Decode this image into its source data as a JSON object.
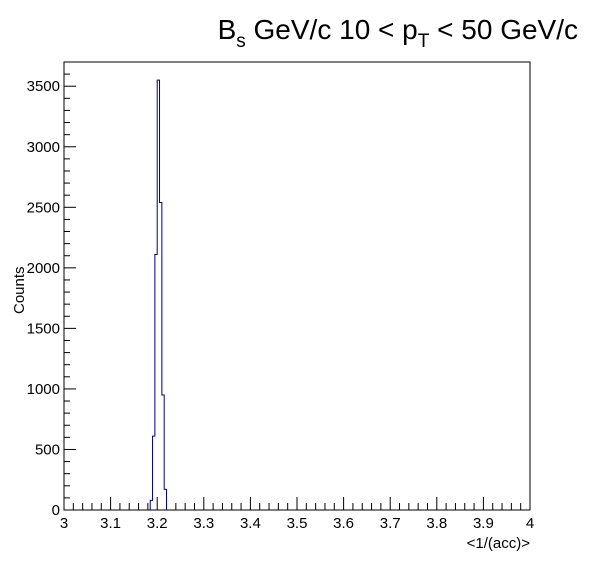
{
  "chart_data": {
    "type": "bar",
    "histogram_style": "step",
    "title": {
      "part1": "B",
      "sub1": "s",
      "part2": " GeV/c 10 < p",
      "sub2": "T",
      "part3": " < 50 GeV/c"
    },
    "xlabel": "<1/(acc)>",
    "ylabel": "Counts",
    "xlim": [
      3,
      4
    ],
    "ylim": [
      0,
      3700
    ],
    "x_ticks": [
      3,
      3.1,
      3.2,
      3.3,
      3.4,
      3.5,
      3.6,
      3.7,
      3.8,
      3.9,
      4
    ],
    "x_tick_labels": [
      "3",
      "3.1",
      "3.2",
      "3.3",
      "3.4",
      "3.5",
      "3.6",
      "3.7",
      "3.8",
      "3.9",
      "4"
    ],
    "y_ticks": [
      0,
      500,
      1000,
      1500,
      2000,
      2500,
      3000,
      3500
    ],
    "y_tick_labels": [
      "0",
      "500",
      "1000",
      "1500",
      "2000",
      "2500",
      "3000",
      "3500"
    ],
    "bin_width": 0.005,
    "bins": [
      {
        "x_low": 3.185,
        "x_high": 3.19,
        "value": 80
      },
      {
        "x_low": 3.19,
        "x_high": 3.195,
        "value": 610
      },
      {
        "x_low": 3.195,
        "x_high": 3.2,
        "value": 2110
      },
      {
        "x_low": 3.2,
        "x_high": 3.205,
        "value": 3550
      },
      {
        "x_low": 3.205,
        "x_high": 3.21,
        "value": 2540
      },
      {
        "x_low": 3.21,
        "x_high": 3.215,
        "value": 950
      },
      {
        "x_low": 3.215,
        "x_high": 3.22,
        "value": 170
      }
    ],
    "grid": false,
    "legend": "none",
    "colors": {
      "line": "#000080",
      "axis": "#000000",
      "background": "#ffffff"
    }
  }
}
